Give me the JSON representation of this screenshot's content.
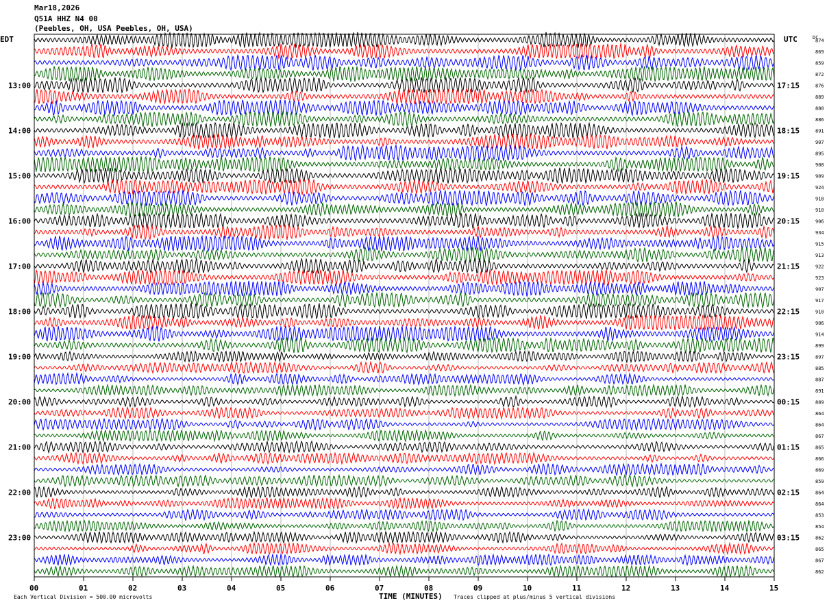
{
  "header": {
    "date": "Mar18,2026",
    "station": "Q51A HHZ N4 00",
    "location": "(Peebles, OH, USA Peebles, OH, USA)"
  },
  "footer": {
    "scale_note": "Each Vertical Division =  500.00 microvolts",
    "clip_note": "Traces clipped at plus/minus 5 vertical divisions"
  },
  "chart_data": {
    "type": "line",
    "xlabel": "TIME (MINUTES)",
    "x_ticks": [
      "00",
      "01",
      "02",
      "03",
      "04",
      "05",
      "06",
      "07",
      "08",
      "09",
      "10",
      "11",
      "12",
      "13",
      "14",
      "15"
    ],
    "xlim": [
      0,
      15
    ],
    "left_axis_label": "EDT",
    "right_axis_label": "UTC",
    "dc_label": "DC",
    "left_hour_labels": [
      "13:00",
      "14:00",
      "15:00",
      "16:00",
      "17:00",
      "18:00",
      "19:00",
      "20:00",
      "21:00",
      "22:00",
      "23:00"
    ],
    "right_hour_labels": [
      "17:15",
      "18:15",
      "19:15",
      "20:15",
      "21:15",
      "22:15",
      "23:15",
      "00:15",
      "01:15",
      "02:15",
      "03:15"
    ],
    "trace_colors": [
      "#000000",
      "#ff0000",
      "#0000ff",
      "#006400"
    ],
    "dc_offsets": [
      874,
      869,
      859,
      872,
      876,
      889,
      880,
      886,
      891,
      907,
      895,
      908,
      909,
      924,
      918,
      910,
      906,
      934,
      915,
      913,
      922,
      923,
      907,
      917,
      910,
      906,
      914,
      899,
      897,
      885,
      887,
      891,
      889,
      864,
      864,
      867,
      865,
      866,
      869,
      859,
      864,
      864,
      853,
      854,
      862,
      865,
      867,
      862
    ]
  }
}
